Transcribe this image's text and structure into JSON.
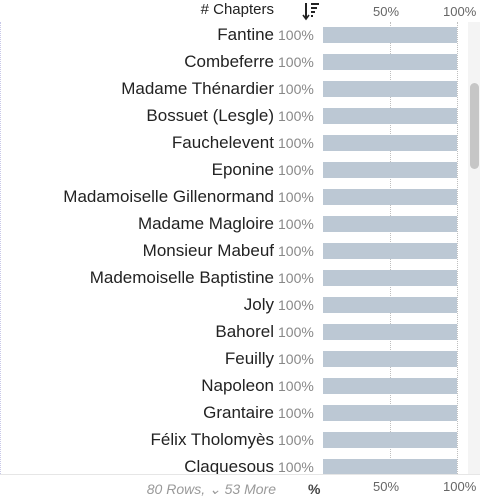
{
  "header": {
    "column_title": "# Chapters",
    "sort_icon": "sort-descending-icon",
    "axis_labels": [
      "50%",
      "100%"
    ]
  },
  "rows": [
    {
      "label": "Fantine",
      "pct_text": "100%",
      "value": 100
    },
    {
      "label": "Combeferre",
      "pct_text": "100%",
      "value": 100
    },
    {
      "label": "Madame Thénardier",
      "pct_text": "100%",
      "value": 100
    },
    {
      "label": "Bossuet (Lesgle)",
      "pct_text": "100%",
      "value": 100
    },
    {
      "label": "Fauchelevent",
      "pct_text": "100%",
      "value": 100
    },
    {
      "label": "Eponine",
      "pct_text": "100%",
      "value": 100
    },
    {
      "label": "Madamoiselle Gillenormand",
      "pct_text": "100%",
      "value": 100
    },
    {
      "label": "Madame Magloire",
      "pct_text": "100%",
      "value": 100
    },
    {
      "label": "Monsieur Mabeuf",
      "pct_text": "100%",
      "value": 100
    },
    {
      "label": "Mademoiselle Baptistine",
      "pct_text": "100%",
      "value": 100
    },
    {
      "label": "Joly",
      "pct_text": "100%",
      "value": 100
    },
    {
      "label": "Bahorel",
      "pct_text": "100%",
      "value": 100
    },
    {
      "label": "Feuilly",
      "pct_text": "100%",
      "value": 100
    },
    {
      "label": "Napoleon",
      "pct_text": "100%",
      "value": 100
    },
    {
      "label": "Grantaire",
      "pct_text": "100%",
      "value": 100
    },
    {
      "label": "Félix Tholomyès",
      "pct_text": "100%",
      "value": 100
    },
    {
      "label": "Claquesous",
      "pct_text": "100%",
      "value": 100
    }
  ],
  "footer": {
    "row_count_text": "80 Rows, ⌄ 53 More",
    "unit_label": "%",
    "axis_labels": [
      "50%",
      "100%"
    ]
  },
  "colors": {
    "bar": "#bcc8d4",
    "pct_text": "#888888",
    "footer_text": "#999999"
  }
}
